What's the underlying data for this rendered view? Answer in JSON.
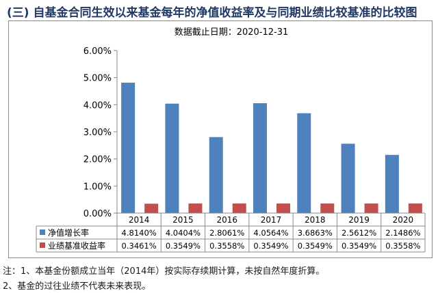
{
  "page_title": "(三) 自基金合同生效以来基金每年的净值收益率及与同期业绩比较基准的比较图",
  "notes": [
    "注：1、本基金份额成立当年（2014年）按实际存续期计算，未按自然年度折算。",
    "2、基金的过往业绩不代表未来表现。"
  ],
  "chart_data": {
    "type": "bar",
    "title": "数据截止日期：2020-12-31",
    "categories": [
      "2014",
      "2015",
      "2016",
      "2017",
      "2018",
      "2019",
      "2020"
    ],
    "series": [
      {
        "name": "净值增长率",
        "color": "#4f81bd",
        "values": [
          4.814,
          4.0404,
          2.8061,
          4.0564,
          3.6863,
          2.5612,
          2.1486
        ],
        "labels": [
          "4.8140%",
          "4.0404%",
          "2.8061%",
          "4.0564%",
          "3.6863%",
          "2.5612%",
          "2.1486%"
        ]
      },
      {
        "name": "业绩基准收益率",
        "color": "#c0504d",
        "values": [
          0.3461,
          0.3549,
          0.3558,
          0.3549,
          0.3549,
          0.3549,
          0.3558
        ],
        "labels": [
          "0.3461%",
          "0.3549%",
          "0.3558%",
          "0.3549%",
          "0.3549%",
          "0.3549%",
          "0.3558%"
        ]
      }
    ],
    "ylim": [
      0,
      6
    ],
    "yticks": [
      "0.00%",
      "1.00%",
      "2.00%",
      "3.00%",
      "4.00%",
      "5.00%",
      "6.00%"
    ],
    "grid": false,
    "legend": "data-table"
  }
}
